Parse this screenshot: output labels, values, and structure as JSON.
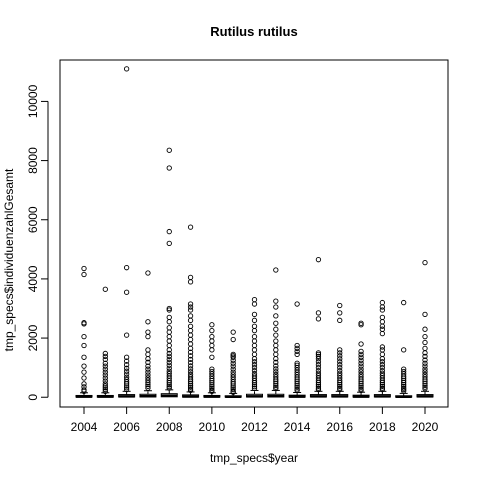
{
  "chart_data": {
    "type": "boxplot",
    "title": "Rutilus rutilus",
    "xlabel": "tmp_specs$year",
    "ylabel": "tmp_specs$individuenzahlGesamt",
    "xticks": [
      "2004",
      "2006",
      "2008",
      "2010",
      "2012",
      "2014",
      "2016",
      "2018",
      "2020"
    ],
    "yticks": [
      0,
      2000,
      4000,
      6000,
      8000,
      10000
    ],
    "ylim": [
      -330,
      11400
    ],
    "grid": false,
    "categories": [
      "2004",
      "2005",
      "2006",
      "2007",
      "2008",
      "2009",
      "2010",
      "2011",
      "2012",
      "2013",
      "2014",
      "2015",
      "2016",
      "2017",
      "2018",
      "2019",
      "2020"
    ],
    "boxes": [
      {
        "year": "2004",
        "q1": 5,
        "median": 20,
        "q3": 60,
        "whisker_high": 150,
        "outliers": [
          4350,
          4150,
          2520,
          2480,
          2050,
          1750,
          1350,
          1050,
          850,
          650,
          450,
          350,
          250,
          200
        ]
      },
      {
        "year": "2005",
        "q1": 5,
        "median": 20,
        "q3": 60,
        "whisker_high": 150,
        "outliers": [
          3650,
          1480,
          1380,
          1280,
          1150,
          1050,
          950,
          850,
          750,
          650,
          550,
          450,
          380,
          320,
          260,
          200
        ]
      },
      {
        "year": "2006",
        "q1": 10,
        "median": 30,
        "q3": 90,
        "whisker_high": 200,
        "outliers": [
          11100,
          4380,
          3550,
          2100,
          1350,
          1220,
          1100,
          980,
          880,
          780,
          680,
          600,
          520,
          450,
          380,
          320,
          260
        ]
      },
      {
        "year": "2007",
        "q1": 10,
        "median": 35,
        "q3": 100,
        "whisker_high": 220,
        "outliers": [
          4200,
          2550,
          2200,
          2050,
          1600,
          1450,
          1300,
          1180,
          1050,
          950,
          850,
          750,
          660,
          580,
          500,
          430,
          370,
          310
        ]
      },
      {
        "year": "2008",
        "q1": 15,
        "median": 50,
        "q3": 120,
        "whisker_high": 250,
        "outliers": [
          8350,
          7750,
          5600,
          5200,
          3000,
          2950,
          2700,
          2550,
          2350,
          2200,
          2050,
          1900,
          1750,
          1600,
          1480,
          1380,
          1280,
          1180,
          1080,
          980,
          880,
          800,
          720,
          640,
          560,
          490,
          420,
          360,
          310
        ]
      },
      {
        "year": "2009",
        "q1": 5,
        "median": 25,
        "q3": 80,
        "whisker_high": 180,
        "outliers": [
          5750,
          4050,
          3900,
          3150,
          3050,
          2950,
          2750,
          2600,
          2400,
          2250,
          2100,
          1950,
          1800,
          1650,
          1520,
          1400,
          1280,
          1170,
          1060,
          960,
          860,
          770,
          690,
          610,
          540,
          470,
          400,
          340,
          280,
          230
        ]
      },
      {
        "year": "2010",
        "q1": 5,
        "median": 20,
        "q3": 60,
        "whisker_high": 150,
        "outliers": [
          2450,
          2250,
          2050,
          1900,
          1750,
          1600,
          1350,
          950,
          870,
          790,
          710,
          630,
          560,
          490,
          420,
          360,
          300,
          240,
          200
        ]
      },
      {
        "year": "2011",
        "q1": 5,
        "median": 15,
        "q3": 50,
        "whisker_high": 130,
        "outliers": [
          2200,
          1950,
          1450,
          1400,
          1350,
          1250,
          1150,
          1050,
          950,
          850,
          760,
          680,
          600,
          520,
          450,
          380,
          320,
          260,
          200,
          170
        ]
      },
      {
        "year": "2012",
        "q1": 10,
        "median": 30,
        "q3": 100,
        "whisker_high": 230,
        "outliers": [
          3300,
          3150,
          2800,
          2600,
          2400,
          2250,
          2050,
          1900,
          1750,
          1600,
          1450,
          1300,
          1200,
          1100,
          1000,
          900,
          800,
          720,
          640,
          560,
          490,
          420,
          360,
          300
        ]
      },
      {
        "year": "2013",
        "q1": 10,
        "median": 35,
        "q3": 100,
        "whisker_high": 230,
        "outliers": [
          4300,
          3250,
          3050,
          2750,
          2500,
          2300,
          2100,
          1900,
          1750,
          1600,
          1450,
          1300,
          1180,
          1060,
          960,
          860,
          770,
          690,
          610,
          540,
          470,
          400,
          340,
          290
        ]
      },
      {
        "year": "2014",
        "q1": 5,
        "median": 20,
        "q3": 70,
        "whisker_high": 160,
        "outliers": [
          3150,
          1750,
          1650,
          1550,
          1450,
          1150,
          1080,
          1000,
          920,
          840,
          760,
          680,
          610,
          540,
          470,
          400,
          340,
          280,
          230
        ]
      },
      {
        "year": "2015",
        "q1": 10,
        "median": 30,
        "q3": 90,
        "whisker_high": 200,
        "outliers": [
          4650,
          2850,
          2650,
          1500,
          1450,
          1380,
          1300,
          1200,
          1100,
          1000,
          900,
          810,
          730,
          650,
          570,
          500,
          430,
          370,
          310,
          260
        ]
      },
      {
        "year": "2016",
        "q1": 10,
        "median": 30,
        "q3": 90,
        "whisker_high": 200,
        "outliers": [
          3100,
          2850,
          2600,
          1600,
          1500,
          1400,
          1300,
          1200,
          1100,
          1000,
          900,
          810,
          730,
          650,
          570,
          500,
          430,
          370,
          310,
          260
        ]
      },
      {
        "year": "2017",
        "q1": 5,
        "median": 20,
        "q3": 70,
        "whisker_high": 170,
        "outliers": [
          2500,
          2450,
          1800,
          1550,
          1450,
          1350,
          1250,
          1150,
          1050,
          950,
          860,
          770,
          690,
          610,
          540,
          470,
          400,
          340,
          280,
          230
        ]
      },
      {
        "year": "2018",
        "q1": 10,
        "median": 30,
        "q3": 90,
        "whisker_high": 200,
        "outliers": [
          3200,
          3050,
          2950,
          2700,
          2550,
          2400,
          2300,
          2150,
          1700,
          1600,
          1450,
          1300,
          1200,
          1100,
          1000,
          900,
          810,
          730,
          650,
          570,
          500,
          430,
          370,
          310,
          260
        ]
      },
      {
        "year": "2019",
        "q1": 5,
        "median": 15,
        "q3": 50,
        "whisker_high": 130,
        "outliers": [
          3200,
          1600,
          950,
          870,
          790,
          710,
          640,
          570,
          500,
          430,
          370,
          310,
          260,
          210
        ]
      },
      {
        "year": "2020",
        "q1": 10,
        "median": 30,
        "q3": 90,
        "whisker_high": 200,
        "outliers": [
          4550,
          2800,
          2300,
          2050,
          1850,
          1650,
          1500,
          1380,
          1260,
          1150,
          1050,
          950,
          860,
          770,
          690,
          610,
          540,
          470,
          400,
          340,
          290
        ]
      }
    ]
  }
}
